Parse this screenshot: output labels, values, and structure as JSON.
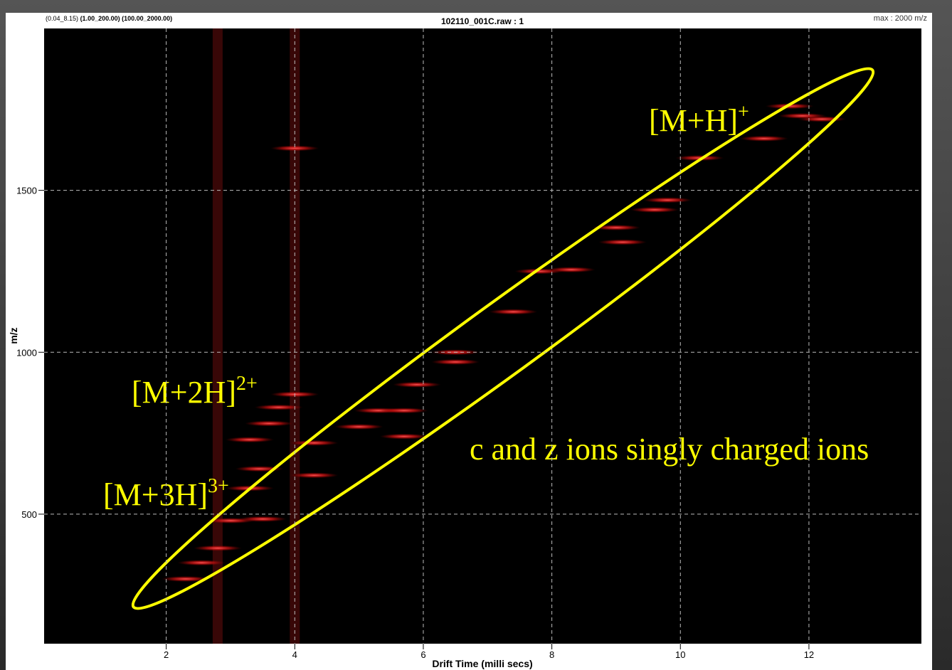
{
  "chart_data": {
    "type": "heatmap",
    "title": "102110_001C.raw : 1",
    "range_note": "(0.04_8.15)",
    "range_note_bold": "(1.00_200.00) (100.00_2000.00)",
    "max_note": "max : 2000 m/z",
    "x_label": "Drift Time (milli secs)",
    "y_label": "m/z",
    "xlim": [
      0.1,
      13.75
    ],
    "ylim": [
      100,
      2000
    ],
    "xticks": [
      2,
      4,
      6,
      8,
      10,
      12
    ],
    "yticks": [
      500,
      1000,
      1500
    ],
    "grid": true,
    "color": "#ff2020",
    "bands_x": [
      2.8,
      4.0
    ],
    "x": [
      2.3,
      2.55,
      2.8,
      3.0,
      3.5,
      3.3,
      3.45,
      3.3,
      3.6,
      3.75,
      4.0,
      4.3,
      4.3,
      5.0,
      5.3,
      5.7,
      5.7,
      5.9,
      6.5,
      6.5,
      7.4,
      7.8,
      8.3,
      9.1,
      9.0,
      9.6,
      9.8,
      10.3,
      11.3,
      11.7,
      11.9,
      12.2,
      4.0
    ],
    "y": [
      300,
      350,
      395,
      480,
      485,
      580,
      640,
      730,
      780,
      830,
      870,
      720,
      620,
      770,
      820,
      820,
      740,
      900,
      970,
      1000,
      1125,
      1250,
      1255,
      1340,
      1385,
      1440,
      1470,
      1600,
      1660,
      1760,
      1730,
      1720,
      1630
    ],
    "annotations": [
      {
        "text": "[M+H]",
        "sup": "+"
      },
      {
        "text": "[M+2H]",
        "sup": "2+"
      },
      {
        "text": "[M+3H]",
        "sup": "3+"
      },
      {
        "text": "c and z ions singly charged ions"
      }
    ]
  }
}
